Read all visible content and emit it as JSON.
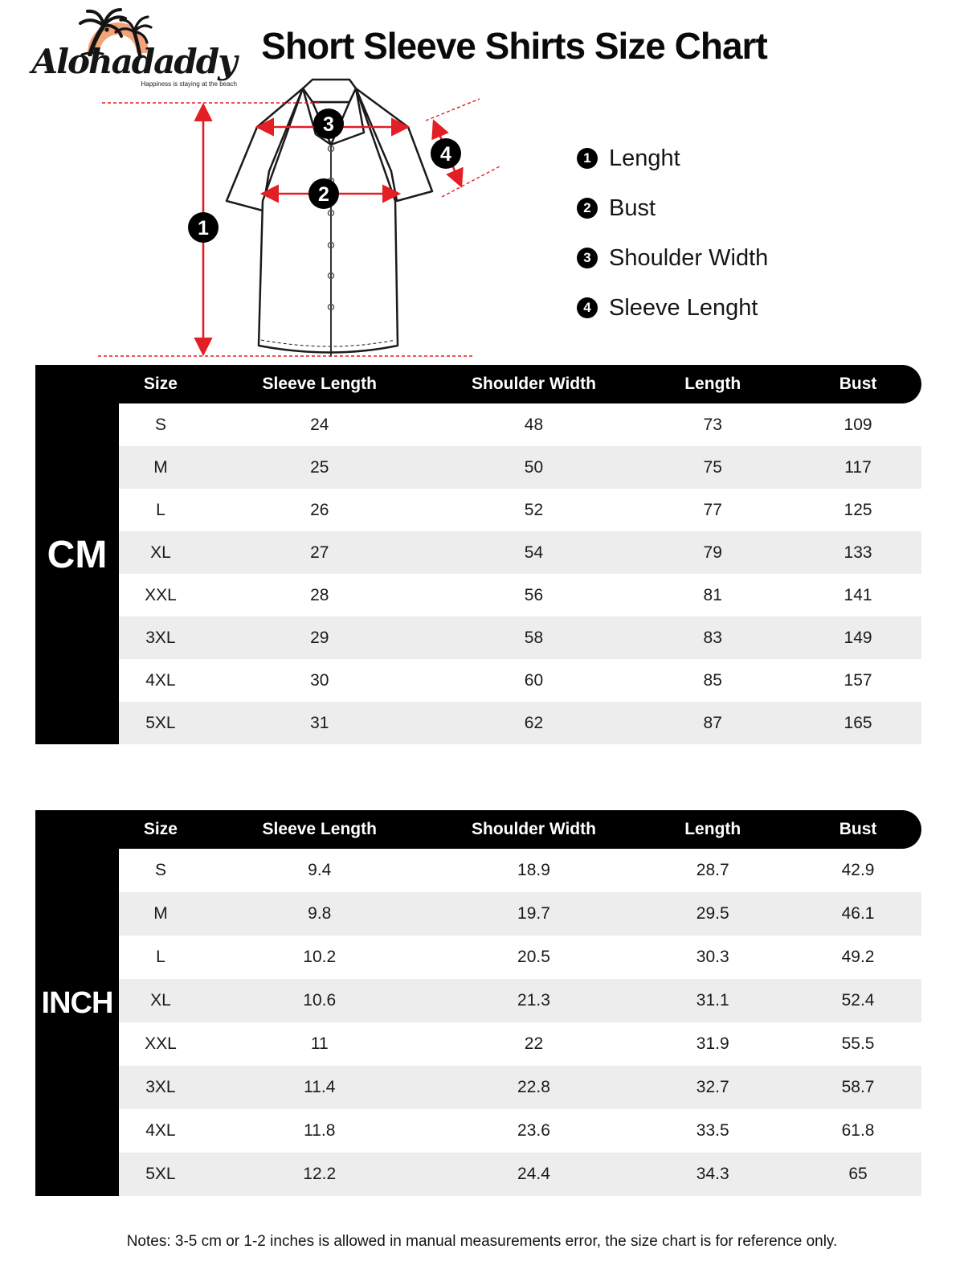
{
  "brand": {
    "name": "Alohadaddy",
    "tagline": "Happiness is staying at the beach"
  },
  "title": "Short Sleeve Shirts Size Chart",
  "legend": [
    {
      "num": "1",
      "label": "Lenght"
    },
    {
      "num": "2",
      "label": "Bust"
    },
    {
      "num": "3",
      "label": "Shoulder Width"
    },
    {
      "num": "4",
      "label": "Sleeve Lenght"
    }
  ],
  "tables": [
    {
      "unit": "CM",
      "columns": [
        "Size",
        "Sleeve Length",
        "Shoulder Width",
        "Length",
        "Bust"
      ],
      "rows": [
        [
          "S",
          "24",
          "48",
          "73",
          "109"
        ],
        [
          "M",
          "25",
          "50",
          "75",
          "117"
        ],
        [
          "L",
          "26",
          "52",
          "77",
          "125"
        ],
        [
          "XL",
          "27",
          "54",
          "79",
          "133"
        ],
        [
          "XXL",
          "28",
          "56",
          "81",
          "141"
        ],
        [
          "3XL",
          "29",
          "58",
          "83",
          "149"
        ],
        [
          "4XL",
          "30",
          "60",
          "85",
          "157"
        ],
        [
          "5XL",
          "31",
          "62",
          "87",
          "165"
        ]
      ]
    },
    {
      "unit": "INCH",
      "columns": [
        "Size",
        "Sleeve Length",
        "Shoulder Width",
        "Length",
        "Bust"
      ],
      "rows": [
        [
          "S",
          "9.4",
          "18.9",
          "28.7",
          "42.9"
        ],
        [
          "M",
          "9.8",
          "19.7",
          "29.5",
          "46.1"
        ],
        [
          "L",
          "10.2",
          "20.5",
          "30.3",
          "49.2"
        ],
        [
          "XL",
          "10.6",
          "21.3",
          "31.1",
          "52.4"
        ],
        [
          "XXL",
          "11",
          "22",
          "31.9",
          "55.5"
        ],
        [
          "3XL",
          "11.4",
          "22.8",
          "32.7",
          "58.7"
        ],
        [
          "4XL",
          "11.8",
          "23.6",
          "33.5",
          "61.8"
        ],
        [
          "5XL",
          "12.2",
          "24.4",
          "34.3",
          "65"
        ]
      ]
    }
  ],
  "notes": "Notes: 3-5 cm or 1-2 inches is allowed in manual measurements error, the size chart is for reference only.",
  "colors": {
    "accent_red": "#e31e24",
    "row_alt": "#ededed",
    "bar_black": "#000000",
    "logo_orange": "#f2a379"
  }
}
